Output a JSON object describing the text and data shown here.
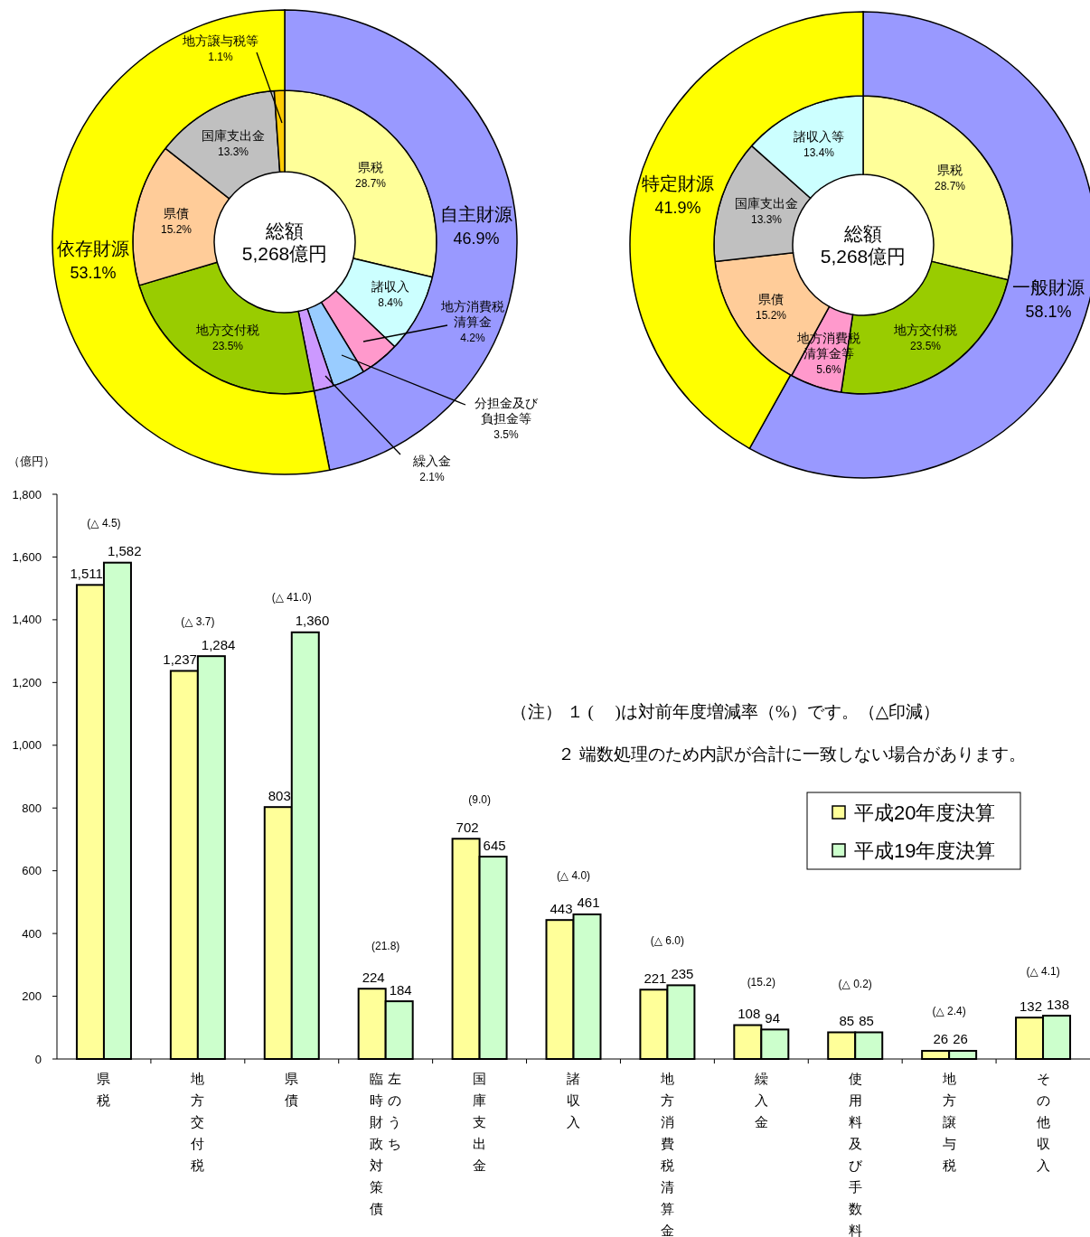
{
  "chart_data": [
    {
      "type": "donut",
      "categories": [
        "県税",
        "諸収入",
        "地方消費税清算金",
        "分担金及び負担金等",
        "繰入金",
        "地方交付税",
        "県債",
        "国庫支出金",
        "地方譲与税等"
      ],
      "values": [
        28.7,
        8.4,
        4.2,
        3.5,
        2.1,
        23.5,
        15.2,
        13.3,
        1.1
      ],
      "value_labels": [
        "28.7%",
        "8.4%",
        "4.2%",
        "3.5%",
        "2.1%",
        "23.5%",
        "15.2%",
        "13.3%",
        "1.1%"
      ],
      "colors": [
        "#ffff99",
        "#ccffff",
        "#ff99cc",
        "#99ccff",
        "#cc99ff",
        "#99cc00",
        "#ffcc99",
        "#c0c0c0",
        "#ffcc00"
      ],
      "annotations": [
        "総額\n5,268億円"
      ]
    },
    {
      "type": "donut",
      "categories": [
        "自主財源",
        "依存財源"
      ],
      "values": [
        46.9,
        53.1
      ],
      "value_labels": [
        "46.9%",
        "53.1%"
      ],
      "colors": [
        "#9999ff",
        "#ffff00"
      ]
    },
    {
      "type": "donut",
      "categories": [
        "県税",
        "地方交付税",
        "地方消費税清算金等",
        "県債",
        "国庫支出金",
        "諸収入等"
      ],
      "values": [
        28.7,
        23.5,
        5.6,
        15.2,
        13.3,
        13.4
      ],
      "value_labels": [
        "28.7%",
        "23.5%",
        "5.6%",
        "15.2%",
        "13.3%",
        "13.4%"
      ],
      "colors": [
        "#ffff99",
        "#99cc00",
        "#ff99cc",
        "#ffcc99",
        "#c0c0c0",
        "#ccffff"
      ],
      "annotations": [
        "総額\n5,268億円"
      ]
    },
    {
      "type": "donut",
      "categories": [
        "一般財源",
        "特定財源"
      ],
      "values": [
        58.1,
        41.9
      ],
      "value_labels": [
        "58.1%",
        "41.9%"
      ],
      "colors": [
        "#9999ff",
        "#ffff00"
      ]
    },
    {
      "type": "bar",
      "ylabel": "（億円）",
      "categories": [
        "県税",
        "地方交付税",
        "県債",
        "臨時財政対策債",
        "国庫支出金",
        "諸収入",
        "地方消費税清算金",
        "繰入金",
        "使用料及び手数料",
        "地方譲与税",
        "その他収入"
      ],
      "series": [
        {
          "name": "平成20年度決算",
          "color": "#ffff99",
          "values": [
            1511,
            1237,
            803,
            224,
            702,
            443,
            221,
            108,
            85,
            26,
            132
          ],
          "value_labels": [
            "1,511",
            "1,237",
            "803",
            "224",
            "702",
            "443",
            "221",
            "108",
            "85",
            "26",
            "132"
          ]
        },
        {
          "name": "平成19年度決算",
          "color": "#ccffcc",
          "values": [
            1582,
            1284,
            1360,
            184,
            645,
            461,
            235,
            94,
            85,
            26,
            138
          ],
          "value_labels": [
            "1,582",
            "1,284",
            "1,360",
            "184",
            "645",
            "461",
            "235",
            "94",
            "85",
            "26",
            "138"
          ]
        }
      ],
      "ylim": [
        0,
        1800
      ],
      "yticks": [
        0,
        200,
        400,
        600,
        800,
        {
          "value": 1000,
          "label": "1,000"
        },
        {
          "value": 1200,
          "label": "1,200"
        },
        {
          "value": 1400,
          "label": "1,400"
        },
        {
          "value": 1600,
          "label": "1,600"
        },
        {
          "value": 1800,
          "label": "1,800"
        }
      ],
      "legend": "right",
      "annotations": [
        "(△ 4.5)",
        "(△ 3.7)",
        "(△ 41.0)",
        "(21.8)",
        "(9.0)",
        "(△ 4.0)",
        "(△ 6.0)",
        "(15.2)",
        "(△ 0.2)",
        "(△ 2.4)",
        "(△ 4.1)",
        "左のうち",
        "（注） １ (　 )は対前年度増減率（%）です。（△印減）",
        "２ 端数処理のため内訳が合計に一致しない場合があります。"
      ]
    }
  ]
}
